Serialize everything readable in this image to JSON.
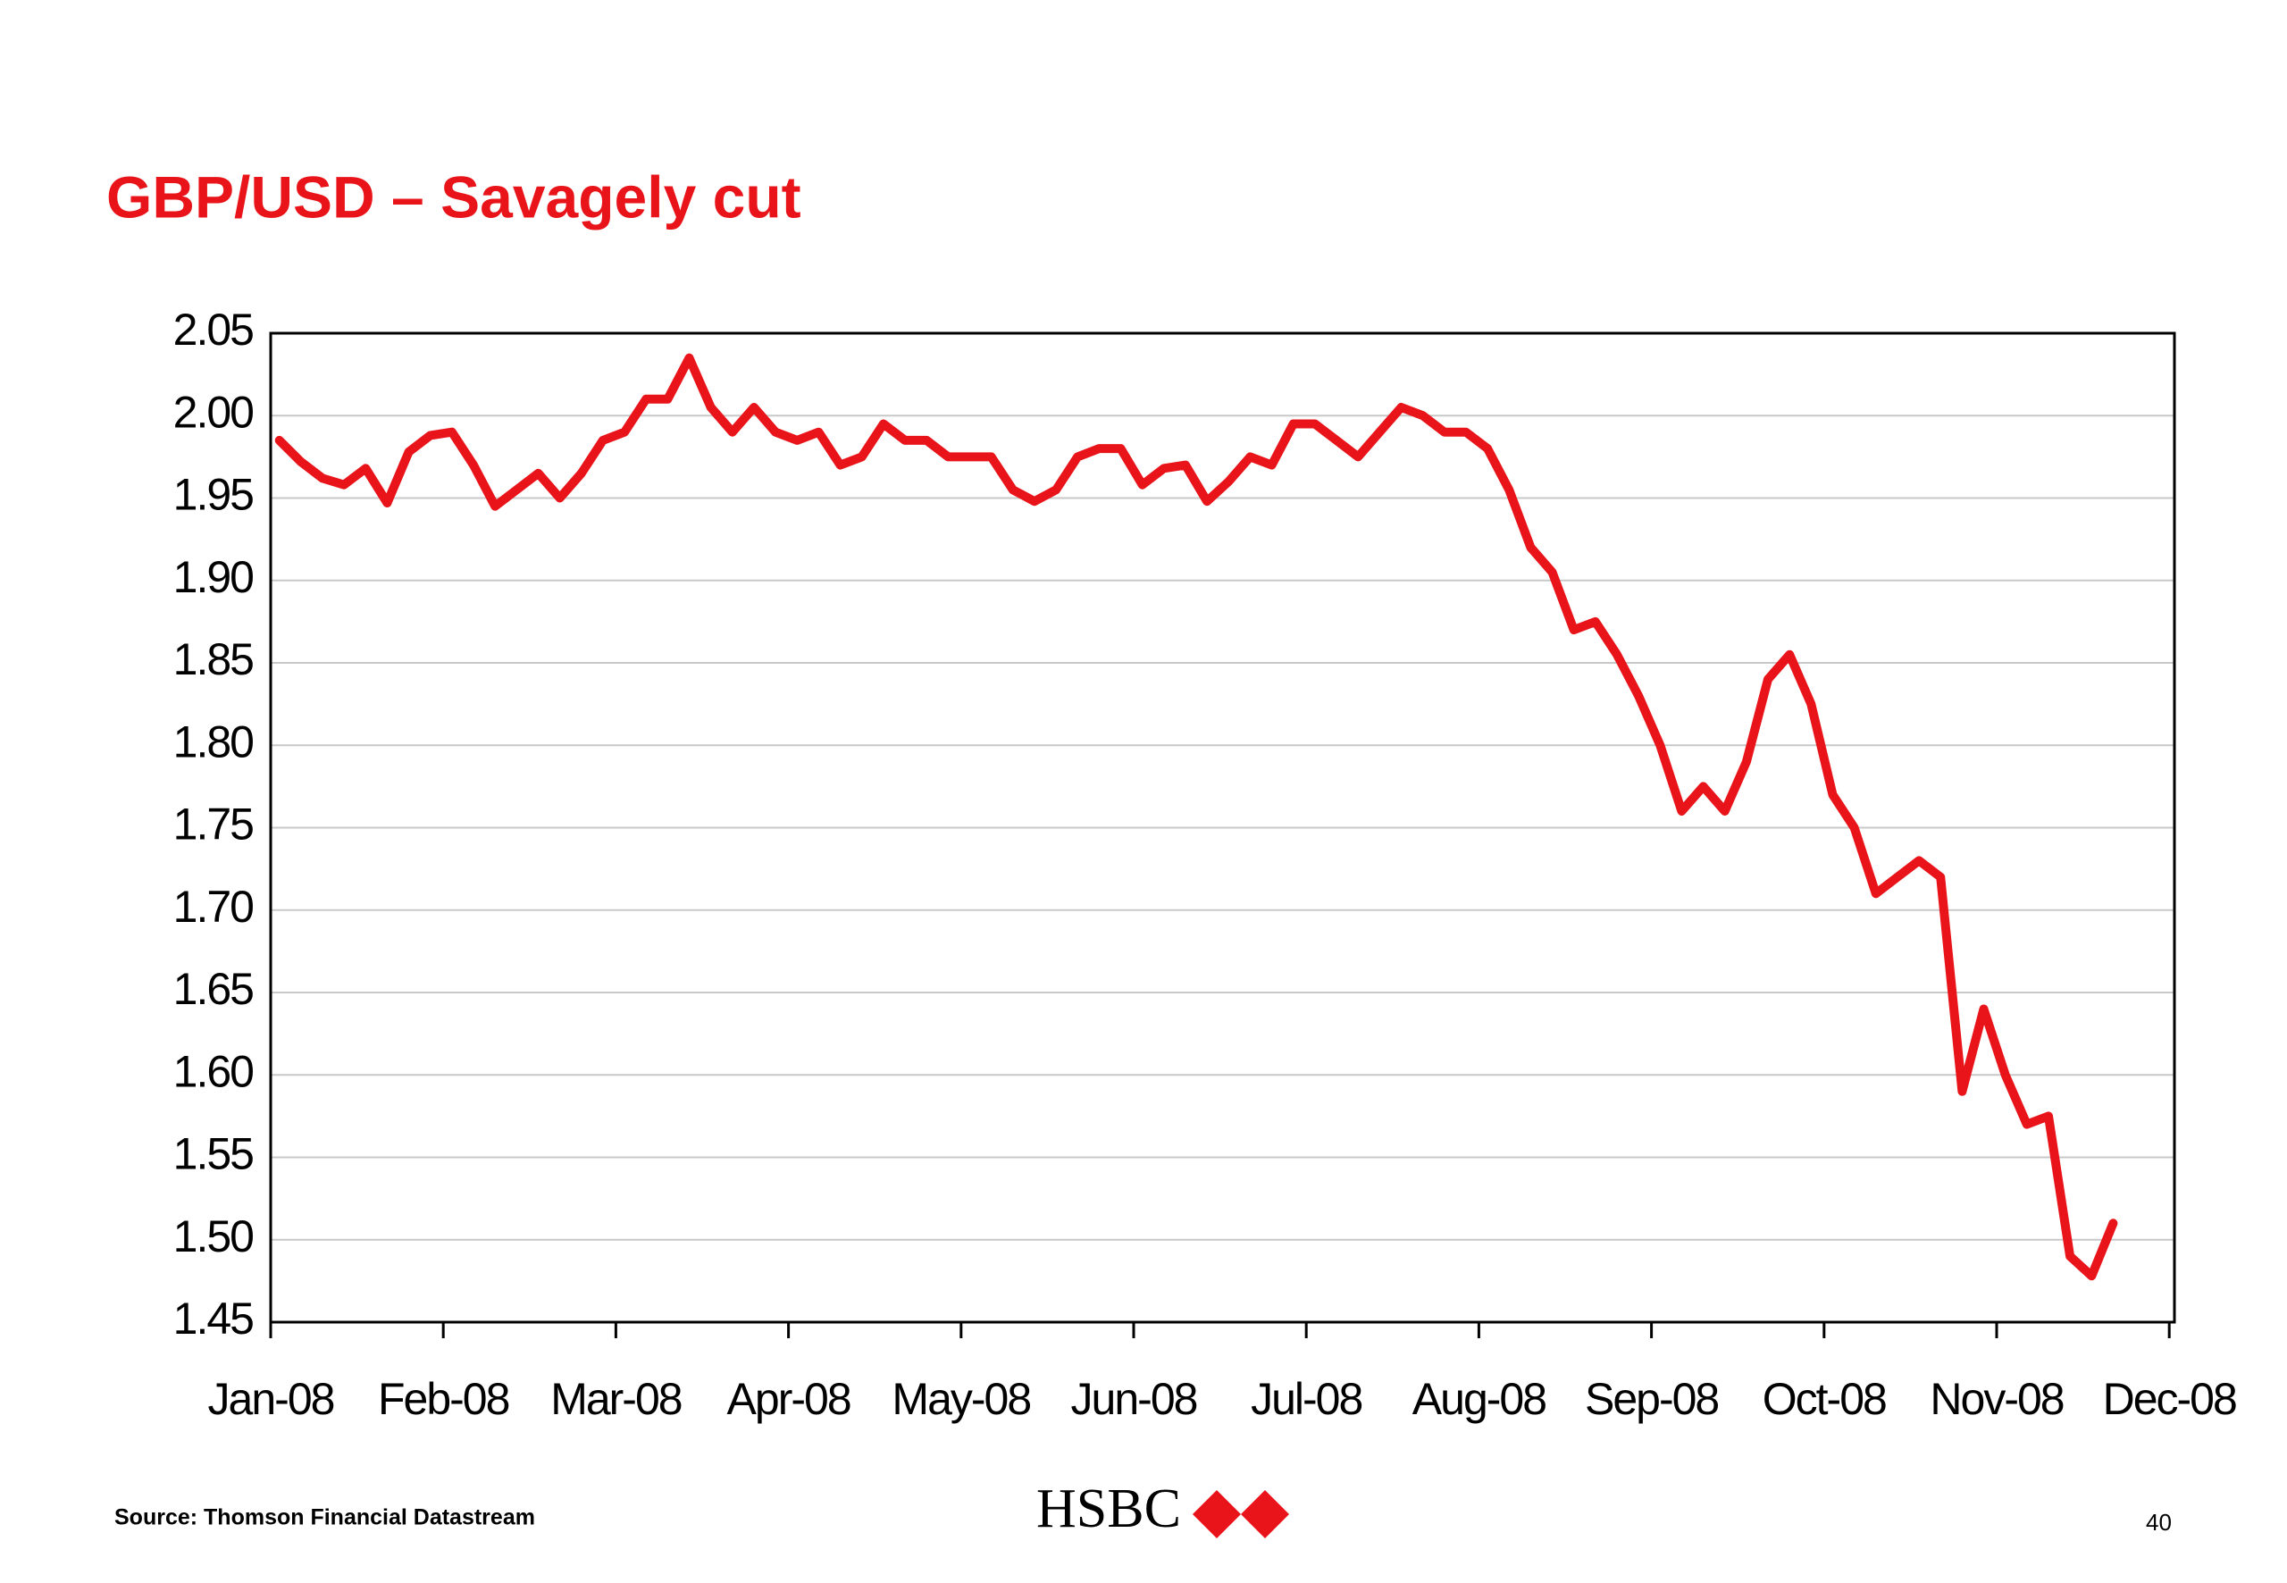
{
  "chart_data": {
    "type": "line",
    "title": "GBP/USD – Savagely cut",
    "source": "Source: Thomson Financial Datastream",
    "logo": "HSBC",
    "page_number": "40",
    "color": "#e8141a",
    "grid": true,
    "xticks": [
      "Jan-08",
      "Feb-08",
      "Mar-08",
      "Apr-08",
      "May-08",
      "Jun-08",
      "Jul-08",
      "Aug-08",
      "Sep-08",
      "Oct-08",
      "Nov-08",
      "Dec-08"
    ],
    "x": [
      "Jan-08",
      "Jan-08",
      "Jan-08",
      "Jan-08",
      "Jan-08",
      "Jan-08",
      "Jan-08",
      "Jan-08",
      "Feb-08",
      "Feb-08",
      "Feb-08",
      "Feb-08",
      "Feb-08",
      "Feb-08",
      "Feb-08",
      "Feb-08",
      "Mar-08",
      "Mar-08",
      "Mar-08",
      "Mar-08",
      "Mar-08",
      "Mar-08",
      "Mar-08",
      "Mar-08",
      "Apr-08",
      "Apr-08",
      "Apr-08",
      "Apr-08",
      "Apr-08",
      "Apr-08",
      "Apr-08",
      "Apr-08",
      "May-08",
      "May-08",
      "May-08",
      "May-08",
      "May-08",
      "May-08",
      "May-08",
      "May-08",
      "Jun-08",
      "Jun-08",
      "Jun-08",
      "Jun-08",
      "Jun-08",
      "Jun-08",
      "Jun-08",
      "Jun-08",
      "Jul-08",
      "Jul-08",
      "Jul-08",
      "Jul-08",
      "Jul-08",
      "Jul-08",
      "Jul-08",
      "Jul-08",
      "Aug-08",
      "Aug-08",
      "Aug-08",
      "Aug-08",
      "Aug-08",
      "Aug-08",
      "Aug-08",
      "Aug-08",
      "Sep-08",
      "Sep-08",
      "Sep-08",
      "Sep-08",
      "Sep-08",
      "Sep-08",
      "Sep-08",
      "Sep-08",
      "Oct-08",
      "Oct-08",
      "Oct-08",
      "Oct-08",
      "Oct-08",
      "Oct-08",
      "Oct-08",
      "Oct-08",
      "Nov-08",
      "Nov-08",
      "Nov-08",
      "Nov-08",
      "Nov-08",
      "Nov-08"
    ],
    "values": [
      1.985,
      1.972,
      1.962,
      1.958,
      1.968,
      1.947,
      1.978,
      1.988,
      1.99,
      1.97,
      1.945,
      1.955,
      1.965,
      1.95,
      1.965,
      1.985,
      1.99,
      2.01,
      2.01,
      2.035,
      2.005,
      1.99,
      2.005,
      1.99,
      1.985,
      1.99,
      1.97,
      1.975,
      1.995,
      1.985,
      1.985,
      1.975,
      1.975,
      1.975,
      1.955,
      1.948,
      1.955,
      1.975,
      1.98,
      1.98,
      1.958,
      1.968,
      1.97,
      1.948,
      1.96,
      1.975,
      1.97,
      1.995,
      1.995,
      1.985,
      1.975,
      1.99,
      2.005,
      2.0,
      1.99,
      1.99,
      1.98,
      1.955,
      1.92,
      1.905,
      1.87,
      1.875,
      1.855,
      1.83,
      1.8,
      1.76,
      1.775,
      1.76,
      1.79,
      1.84,
      1.855,
      1.825,
      1.77,
      1.75,
      1.71,
      1.72,
      1.73,
      1.72,
      1.59,
      1.64,
      1.6,
      1.57,
      1.575,
      1.49,
      1.478,
      1.51
    ],
    "ylim": [
      1.45,
      2.05
    ],
    "yticks": [
      {
        "value": 1.45,
        "label": "1.45"
      },
      {
        "value": 1.5,
        "label": "1.50"
      },
      {
        "value": 1.55,
        "label": "1.55"
      },
      {
        "value": 1.6,
        "label": "1.60"
      },
      {
        "value": 1.65,
        "label": "1.65"
      },
      {
        "value": 1.7,
        "label": "1.70"
      },
      {
        "value": 1.75,
        "label": "1.75"
      },
      {
        "value": 1.8,
        "label": "1.80"
      },
      {
        "value": 1.85,
        "label": "1.85"
      },
      {
        "value": 1.9,
        "label": "1.90"
      },
      {
        "value": 1.95,
        "label": "1.95"
      },
      {
        "value": 2.0,
        "label": "2.00"
      },
      {
        "value": 2.05,
        "label": "2.05"
      }
    ]
  }
}
